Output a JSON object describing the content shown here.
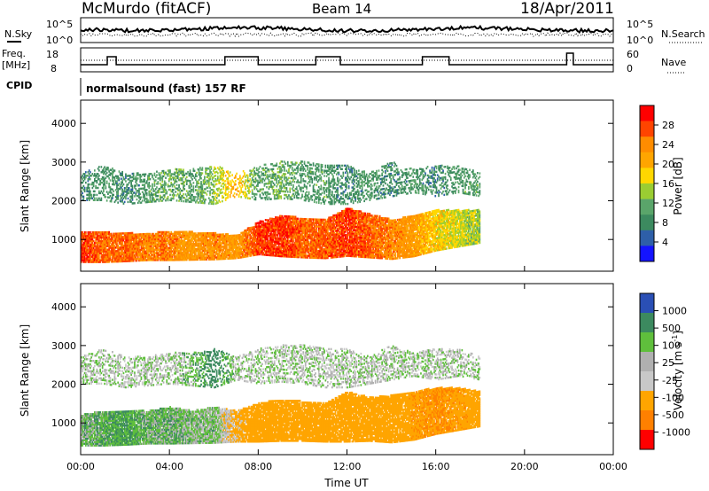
{
  "header": {
    "station": "McMurdo (fitACF)",
    "beam": "Beam 14",
    "date": "18/Apr/2011"
  },
  "status_panel": {
    "noise_label_left": "N.Sky",
    "noise_label_right": "N.Search",
    "noise_axis_left": [
      "10^5",
      "10^0"
    ],
    "noise_axis_right": [
      "10^5",
      "10^0"
    ],
    "freq_label_line1": "Freq.",
    "freq_label_line2": "[MHz]",
    "freq_ticks": [
      "18",
      "8"
    ],
    "nave_label": "Nave",
    "nave_ticks": [
      "60",
      "0"
    ],
    "cpid_label": "CPID",
    "cpid_text": "normalsound (fast) 157 RF"
  },
  "colorbars": {
    "power": {
      "label": "Power [dB]",
      "ticks": [
        "28",
        "24",
        "20",
        "16",
        "12",
        "8",
        "4"
      ],
      "colors": [
        "#ff0000",
        "#ff4400",
        "#ff8c00",
        "#ffa500",
        "#ffd700",
        "#9acd32",
        "#5aa56a",
        "#3c8a5f",
        "#2e5fa8",
        "#1414ff"
      ]
    },
    "velocity": {
      "label": "Velocity",
      "unit": "[m s",
      "unit_sup": "-1",
      "unit_end": "]",
      "ticks": [
        "1000",
        "500",
        "100",
        "25",
        "-25",
        "-100",
        "-500",
        "-1000"
      ],
      "colors": [
        "#2a4fb5",
        "#3c8a5f",
        "#5fbf3c",
        "#b0b0b0",
        "#c8c8c8",
        "#ffa500",
        "#ff8000",
        "#ff0000"
      ]
    }
  },
  "chart_data": [
    {
      "type": "heatmap",
      "name": "Power",
      "ylabel": "Slant Range [km]",
      "ylim": [
        180,
        4600
      ],
      "yticks": [
        "4000",
        "3000",
        "2000",
        "1000"
      ],
      "xlim": [
        0,
        24
      ],
      "xticks": [
        "00:00",
        "04:00",
        "08:00",
        "12:00",
        "16:00",
        "20:00",
        "00:00"
      ],
      "cbar_range_db": [
        0,
        32
      ],
      "series": [
        {
          "name": "near band",
          "x": [
            0,
            1,
            2,
            3,
            4,
            5,
            6,
            7,
            8,
            9,
            10,
            11,
            12,
            13,
            14,
            15,
            16,
            17,
            18
          ],
          "range_low": [
            400,
            400,
            420,
            450,
            450,
            460,
            470,
            500,
            600,
            550,
            520,
            500,
            560,
            520,
            480,
            550,
            700,
            800,
            900
          ],
          "range_high": [
            1200,
            1180,
            1150,
            1150,
            1200,
            1180,
            1150,
            1100,
            1450,
            1600,
            1550,
            1500,
            1800,
            1650,
            1500,
            1600,
            1750,
            1750,
            1750
          ],
          "power": [
            28,
            26,
            26,
            24,
            24,
            22,
            24,
            22,
            28,
            28,
            26,
            26,
            28,
            26,
            24,
            22,
            18,
            16,
            14
          ]
        },
        {
          "name": "far band",
          "x": [
            0,
            1,
            2,
            3,
            4,
            5,
            6,
            7,
            8,
            9,
            10,
            11,
            12,
            13,
            14,
            15,
            16,
            17,
            18
          ],
          "range_low": [
            2000,
            2000,
            1900,
            1950,
            2000,
            1950,
            1900,
            2100,
            2000,
            2050,
            2000,
            1900,
            1900,
            2000,
            2100,
            2200,
            2100,
            2200,
            2100
          ],
          "range_high": [
            2700,
            2900,
            2700,
            2700,
            2800,
            2800,
            2900,
            2700,
            2900,
            3000,
            3000,
            2900,
            2900,
            2700,
            3000,
            2800,
            2900,
            2900,
            2700
          ],
          "power": [
            8,
            10,
            8,
            10,
            12,
            10,
            14,
            20,
            10,
            12,
            10,
            10,
            8,
            10,
            8,
            10,
            8,
            10,
            10
          ]
        }
      ]
    },
    {
      "type": "heatmap",
      "name": "Velocity",
      "ylabel": "Slant Range [km]",
      "ylim": [
        180,
        4600
      ],
      "yticks": [
        "4000",
        "3000",
        "2000",
        "1000"
      ],
      "xlim": [
        0,
        24
      ],
      "xticks": [
        "00:00",
        "04:00",
        "08:00",
        "12:00",
        "16:00",
        "20:00",
        "00:00"
      ],
      "xlabel": "Time UT",
      "cbar_range_ms": [
        -1000,
        1000
      ],
      "series": [
        {
          "name": "near band",
          "x": [
            0,
            1,
            2,
            3,
            4,
            5,
            6,
            7,
            8,
            9,
            10,
            11,
            12,
            13,
            14,
            15,
            16,
            17,
            18
          ],
          "range_low": [
            400,
            400,
            420,
            450,
            450,
            460,
            470,
            500,
            500,
            520,
            520,
            500,
            500,
            520,
            480,
            550,
            700,
            800,
            900
          ],
          "range_high": [
            1200,
            1300,
            1300,
            1300,
            1400,
            1300,
            1400,
            1300,
            1500,
            1600,
            1550,
            1500,
            1800,
            1650,
            1700,
            1800,
            1900,
            1900,
            1800
          ],
          "velocity": [
            50,
            80,
            120,
            60,
            60,
            40,
            30,
            -150,
            -200,
            -400,
            -300,
            -250,
            -300,
            -400,
            -350,
            -450,
            -500,
            -450,
            -400
          ]
        },
        {
          "name": "far band",
          "x": [
            0,
            1,
            2,
            3,
            4,
            5,
            6,
            7,
            8,
            9,
            10,
            11,
            12,
            13,
            14,
            15,
            16,
            17,
            18
          ],
          "range_low": [
            2000,
            2000,
            1900,
            1950,
            2000,
            1950,
            1900,
            2100,
            2000,
            2050,
            2000,
            1900,
            1900,
            2000,
            2100,
            2200,
            2100,
            2200,
            2100
          ],
          "range_high": [
            2700,
            2900,
            2700,
            2700,
            2800,
            2800,
            2900,
            2700,
            2900,
            3000,
            3000,
            2900,
            2900,
            2700,
            3000,
            2800,
            2900,
            2900,
            2700
          ],
          "velocity": [
            0,
            10,
            -10,
            5,
            0,
            50,
            200,
            0,
            10,
            -5,
            0,
            5,
            -10,
            0,
            5,
            0,
            10,
            0,
            -5
          ]
        }
      ]
    }
  ]
}
